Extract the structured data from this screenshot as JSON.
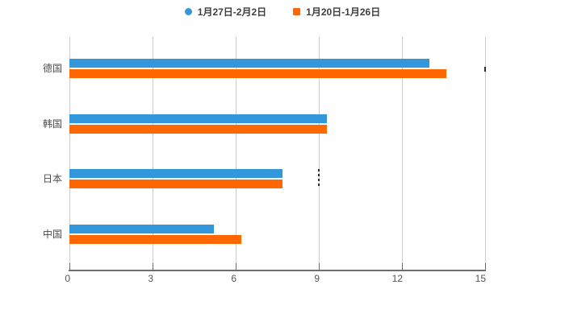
{
  "legend": [
    {
      "label": "1月27日-2月2日",
      "color": "#3398DB",
      "shape": "circle"
    },
    {
      "label": "1月20日-1月26日",
      "color": "#FF6700",
      "shape": "square"
    }
  ],
  "chart_data": {
    "type": "bar",
    "orientation": "horizontal",
    "title": "",
    "xlabel": "",
    "ylabel": "",
    "categories": [
      "德国",
      "韩国",
      "日本",
      "中国"
    ],
    "series": [
      {
        "name": "1月27日-2月2日",
        "color": "#3398DB",
        "values": [
          13.0,
          9.3,
          7.7,
          5.2
        ]
      },
      {
        "name": "1月20日-1月26日",
        "color": "#FF6700",
        "values": [
          13.6,
          9.3,
          7.7,
          6.2
        ]
      }
    ],
    "xlim": [
      0,
      15
    ],
    "xticks": [
      "0",
      "3",
      "6",
      "9",
      "12",
      "15"
    ],
    "grid": true,
    "legend_position": "top-center",
    "artifacts": [
      {
        "x_value": 15,
        "category": "德国",
        "type": "short-tick"
      },
      {
        "x_value": 9,
        "category": "日本",
        "type": "dashed-tick"
      }
    ],
    "colors": {
      "background": "#ffffff",
      "gridline": "#cccccc",
      "axis_line": "#6e6e6e",
      "tick_label": "#555555",
      "category_label": "#4d4d4d",
      "legend_text": "#3f3f3f"
    }
  }
}
